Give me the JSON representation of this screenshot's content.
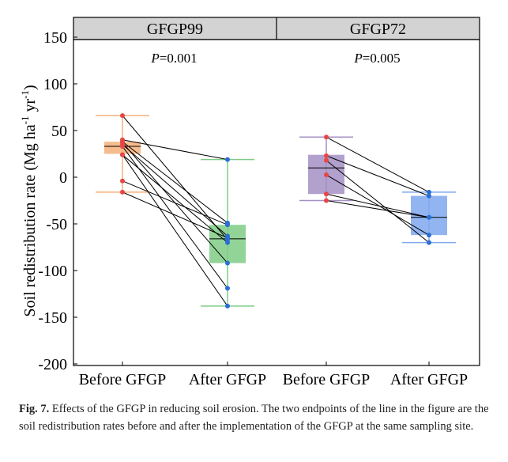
{
  "chart_data": {
    "type": "box-paired",
    "ylabel": "Soil redistribution rate (Mg ha-1 yr-1)",
    "ylabel_parts": {
      "main": "Soil redistribution rate (Mg ha",
      "sup1": "-1",
      "mid": " yr",
      "sup2": "-1",
      "end": ")"
    },
    "ylim": [
      -200,
      150
    ],
    "yticks": [
      150,
      100,
      50,
      0,
      -50,
      -100,
      -150,
      -200
    ],
    "grid": false,
    "categories": [
      "Before GFGP",
      "After GFGP",
      "Before GFGP",
      "After GFGP"
    ],
    "panels": [
      {
        "title": "GFGP99",
        "p_label": "P",
        "p_value": "=0.001",
        "before": {
          "color": "#f5b07a",
          "whisker": [
            -16,
            66
          ],
          "box": [
            25,
            38
          ],
          "median": 33
        },
        "after": {
          "color": "#7fcc85",
          "whisker": [
            -138,
            19
          ],
          "box": [
            -92,
            -51
          ],
          "median": -66
        },
        "pairs": [
          [
            66,
            -67
          ],
          [
            40,
            19
          ],
          [
            38,
            -49
          ],
          [
            37,
            -92
          ],
          [
            35,
            -63
          ],
          [
            33,
            -119
          ],
          [
            24,
            -138
          ],
          [
            24,
            -70
          ],
          [
            -4,
            -51
          ],
          [
            -16,
            -65
          ]
        ]
      },
      {
        "title": "GFGP72",
        "p_label": "P",
        "p_value": "=0.005",
        "before": {
          "color": "#a58fc4",
          "whisker": [
            -25,
            43
          ],
          "box": [
            -18,
            24
          ],
          "median": 10
        },
        "after": {
          "color": "#7fa8ef",
          "whisker": [
            -70,
            -16
          ],
          "box": [
            -62,
            -20
          ],
          "median": -43
        },
        "pairs": [
          [
            43,
            -16
          ],
          [
            23,
            -20
          ],
          [
            18,
            -70
          ],
          [
            2.5,
            -62
          ],
          [
            -18,
            -43
          ],
          [
            -25,
            -43
          ]
        ]
      }
    ],
    "before_point_color": "#e84545",
    "after_point_color": "#2a6fd6"
  },
  "caption": {
    "label": "Fig. 7.",
    "text": "Effects of the GFGP in reducing soil erosion. The two endpoints of the line in the figure are the soil redistribution rates before and after the implementation of the GFGP at the same sampling site."
  }
}
